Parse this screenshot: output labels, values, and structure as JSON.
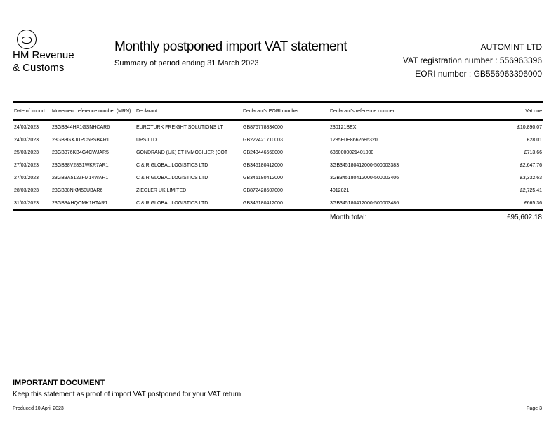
{
  "logo": {
    "line1": "HM Revenue",
    "line2": "& Customs"
  },
  "header": {
    "title": "Monthly postponed import VAT statement",
    "subtitle": "Summary of period ending 31 March 2023",
    "company": "AUTOMINT LTD",
    "vat_registration": "VAT registration number : 556963396",
    "eori": "EORI number : GB556963396000"
  },
  "table": {
    "columns": [
      "Date of import",
      "Movement reference number (MRN)",
      "Declarant",
      "Declarant's EORI number",
      "Declarant's reference number",
      "Vat due"
    ],
    "rows": [
      [
        "24/03/2023",
        "23GB344HA1GSNHCAR6",
        "EUROTURK FREIGHT SOLUTIONS  LT",
        "GB876778834000",
        "230121BEX",
        "£10,890.07"
      ],
      [
        "24/03/2023",
        "23GB3GXJUPC5PSBAR1",
        "UPS LTD",
        "GB222421710003",
        "1285E0E8662686320",
        "£28.01"
      ],
      [
        "25/03/2023",
        "23GB376KB4G4CWJAR5",
        "GONDRAND (UK) ET IMMOBILIER (COT",
        "GB243446568000",
        "6360000021401000",
        "£713.66"
      ],
      [
        "27/03/2023",
        "23GB38V28S1WKR7AR1",
        "C & R GLOBAL LOGISTICS LTD",
        "GB345180412000",
        "3GB345180412000-500003383",
        "£2,647.76"
      ],
      [
        "27/03/2023",
        "23GB3A512ZFM14WAR1",
        "C & R GLOBAL LOGISTICS LTD",
        "GB345180412000",
        "3GB345180412000-500003406",
        "£3,332.63"
      ],
      [
        "28/03/2023",
        "23GB38NKM50UBAR6",
        "ZIEGLER UK LIMITED",
        "GB872428507000",
        "4012821",
        "£2,725.41"
      ],
      [
        "31/03/2023",
        "23GB3AHQOMK1HTAR1",
        "C & R GLOBAL LOGISTICS LTD",
        "GB345180412000",
        "3GB345180412000-500003486",
        "£665.36"
      ]
    ],
    "total_label": "Month total:",
    "total_value": "£95,602.18"
  },
  "footer": {
    "important": "IMPORTANT DOCUMENT",
    "keep": "Keep this statement as proof of import VAT postponed for your VAT return",
    "produced": "Produced 10 April 2023",
    "page": "Page 3"
  }
}
